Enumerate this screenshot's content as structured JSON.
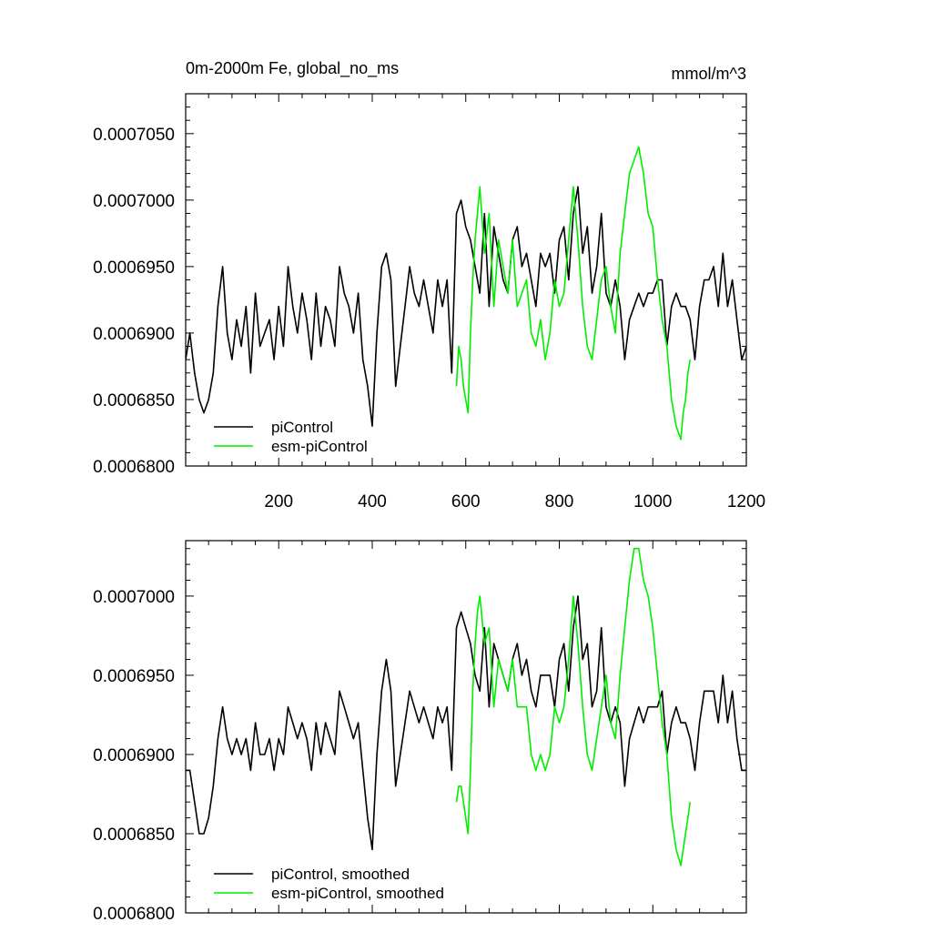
{
  "colors": {
    "piControl": "#000000",
    "esm_piControl": "#00ee00"
  },
  "chart_data": [
    {
      "type": "line",
      "title": "0m-2000m Fe, global_no_ms",
      "units": "mmol/m^3",
      "xlim": [
        1,
        1200
      ],
      "ylim": [
        0.00068,
        0.000708
      ],
      "xticks": [
        200,
        400,
        600,
        800,
        1000,
        1200
      ],
      "xtick_labels": [
        "200",
        "400",
        "600",
        "800",
        "1000",
        "1200"
      ],
      "yticks": [
        0.00068,
        0.000685,
        0.00069,
        0.000695,
        0.0007,
        0.000705
      ],
      "ytick_labels": [
        "0.0006800",
        "0.0006850",
        "0.0006900",
        "0.0006950",
        "0.0007000",
        "0.0007050"
      ],
      "grid": false,
      "legend_position": "bottom-left",
      "series": [
        {
          "name": "piControl",
          "color_key": "piControl",
          "x": [
            1,
            10,
            20,
            30,
            40,
            50,
            60,
            70,
            80,
            90,
            100,
            110,
            120,
            130,
            140,
            150,
            160,
            170,
            180,
            190,
            200,
            210,
            220,
            230,
            240,
            250,
            260,
            270,
            280,
            290,
            300,
            310,
            320,
            330,
            340,
            350,
            360,
            370,
            380,
            390,
            400,
            410,
            420,
            430,
            440,
            450,
            460,
            470,
            480,
            490,
            500,
            510,
            520,
            530,
            540,
            550,
            560,
            570,
            580,
            590,
            600,
            610,
            620,
            630,
            640,
            650,
            660,
            670,
            680,
            690,
            700,
            710,
            720,
            730,
            740,
            750,
            760,
            770,
            780,
            790,
            800,
            810,
            820,
            830,
            840,
            850,
            860,
            870,
            880,
            890,
            900,
            910,
            920,
            930,
            940,
            950,
            960,
            970,
            980,
            990,
            1000,
            1010,
            1020,
            1030,
            1040,
            1050,
            1060,
            1070,
            1080,
            1090,
            1100,
            1110,
            1120,
            1130,
            1140,
            1150,
            1160,
            1170,
            1180,
            1190,
            1200
          ],
          "values": [
            0.000688,
            0.00069,
            0.000687,
            0.000685,
            0.000684,
            0.000685,
            0.000687,
            0.000692,
            0.000695,
            0.00069,
            0.000688,
            0.000691,
            0.000689,
            0.000692,
            0.000687,
            0.000693,
            0.000689,
            0.00069,
            0.000691,
            0.000688,
            0.000692,
            0.000689,
            0.000695,
            0.000692,
            0.00069,
            0.000693,
            0.000691,
            0.000688,
            0.000693,
            0.000689,
            0.000692,
            0.000691,
            0.000689,
            0.000695,
            0.000693,
            0.000692,
            0.00069,
            0.000693,
            0.000688,
            0.000686,
            0.000683,
            0.00069,
            0.000695,
            0.000696,
            0.000694,
            0.000686,
            0.000689,
            0.000692,
            0.000695,
            0.000693,
            0.000692,
            0.000694,
            0.000692,
            0.00069,
            0.000694,
            0.000692,
            0.000694,
            0.000687,
            0.000699,
            0.0007,
            0.000698,
            0.000697,
            0.000695,
            0.000693,
            0.000699,
            0.000692,
            0.000698,
            0.000696,
            0.000694,
            0.000693,
            0.000697,
            0.000698,
            0.000695,
            0.000696,
            0.000694,
            0.000692,
            0.000696,
            0.000695,
            0.000696,
            0.000693,
            0.000697,
            0.000698,
            0.000694,
            0.000699,
            0.000701,
            0.000696,
            0.000698,
            0.000693,
            0.000695,
            0.000699,
            0.000693,
            0.000692,
            0.000694,
            0.000692,
            0.000688,
            0.000691,
            0.000692,
            0.000693,
            0.000692,
            0.000693,
            0.000693,
            0.000694,
            0.000694,
            0.000689,
            0.000692,
            0.000693,
            0.000692,
            0.000692,
            0.000691,
            0.000688,
            0.000692,
            0.000694,
            0.000694,
            0.000695,
            0.000692,
            0.000696,
            0.000692,
            0.000694,
            0.000691,
            0.000688,
            0.000689
          ]
        },
        {
          "name": "esm-piControl",
          "color_key": "esm_piControl",
          "x": [
            580,
            585,
            590,
            595,
            600,
            605,
            610,
            615,
            620,
            625,
            630,
            640,
            650,
            660,
            670,
            680,
            690,
            700,
            710,
            720,
            730,
            740,
            750,
            760,
            770,
            780,
            790,
            800,
            810,
            820,
            830,
            840,
            850,
            860,
            870,
            880,
            890,
            900,
            910,
            920,
            930,
            940,
            950,
            960,
            970,
            980,
            990,
            1000,
            1010,
            1020,
            1030,
            1040,
            1050,
            1060,
            1065,
            1070,
            1075,
            1080
          ],
          "values": [
            0.000686,
            0.000689,
            0.000688,
            0.000686,
            0.000685,
            0.000684,
            0.00069,
            0.000694,
            0.000697,
            0.000699,
            0.000701,
            0.000696,
            0.000699,
            0.000692,
            0.000697,
            0.000695,
            0.000693,
            0.000697,
            0.000692,
            0.000693,
            0.000694,
            0.00069,
            0.000689,
            0.000691,
            0.000688,
            0.00069,
            0.000694,
            0.000692,
            0.000693,
            0.000697,
            0.000701,
            0.000697,
            0.000692,
            0.000689,
            0.000688,
            0.000691,
            0.000694,
            0.000695,
            0.000692,
            0.00069,
            0.000696,
            0.000699,
            0.000702,
            0.000703,
            0.000704,
            0.000702,
            0.000699,
            0.000698,
            0.000694,
            0.000691,
            0.000689,
            0.000685,
            0.000683,
            0.000682,
            0.000684,
            0.000685,
            0.000687,
            0.000688
          ]
        }
      ]
    },
    {
      "type": "line",
      "title": "",
      "xlim": [
        1,
        1200
      ],
      "ylim": [
        0.00068,
        0.0007035
      ],
      "yticks": [
        0.00068,
        0.000685,
        0.00069,
        0.000695,
        0.0007
      ],
      "ytick_labels": [
        "0.0006800",
        "0.0006850",
        "0.0006900",
        "0.0006950",
        "0.0007000"
      ],
      "grid": false,
      "legend_position": "bottom-left",
      "series": [
        {
          "name": "piControl, smoothed",
          "color_key": "piControl",
          "x": [
            1,
            10,
            20,
            30,
            40,
            50,
            60,
            70,
            80,
            90,
            100,
            110,
            120,
            130,
            140,
            150,
            160,
            170,
            180,
            190,
            200,
            210,
            220,
            230,
            240,
            250,
            260,
            270,
            280,
            290,
            300,
            310,
            320,
            330,
            340,
            350,
            360,
            370,
            380,
            390,
            400,
            410,
            420,
            430,
            440,
            450,
            460,
            470,
            480,
            490,
            500,
            510,
            520,
            530,
            540,
            550,
            560,
            570,
            580,
            590,
            600,
            610,
            620,
            630,
            640,
            650,
            660,
            670,
            680,
            690,
            700,
            710,
            720,
            730,
            740,
            750,
            760,
            770,
            780,
            790,
            800,
            810,
            820,
            830,
            840,
            850,
            860,
            870,
            880,
            890,
            900,
            910,
            920,
            930,
            940,
            950,
            960,
            970,
            980,
            990,
            1000,
            1010,
            1020,
            1030,
            1040,
            1050,
            1060,
            1070,
            1080,
            1090,
            1100,
            1110,
            1120,
            1130,
            1140,
            1150,
            1160,
            1170,
            1180,
            1190,
            1200
          ],
          "values": [
            0.000689,
            0.000689,
            0.000687,
            0.000685,
            0.000685,
            0.000686,
            0.000688,
            0.000691,
            0.000693,
            0.000691,
            0.00069,
            0.000691,
            0.00069,
            0.000691,
            0.000689,
            0.000692,
            0.00069,
            0.00069,
            0.000691,
            0.000689,
            0.000691,
            0.00069,
            0.000693,
            0.000692,
            0.000691,
            0.000692,
            0.000691,
            0.000689,
            0.000692,
            0.00069,
            0.000692,
            0.000691,
            0.00069,
            0.000694,
            0.000693,
            0.000692,
            0.000691,
            0.000692,
            0.000689,
            0.000686,
            0.000684,
            0.00069,
            0.000694,
            0.000696,
            0.000694,
            0.000688,
            0.00069,
            0.000692,
            0.000694,
            0.000693,
            0.000692,
            0.000693,
            0.000692,
            0.000691,
            0.000693,
            0.000692,
            0.000693,
            0.000689,
            0.000698,
            0.000699,
            0.000698,
            0.000697,
            0.000695,
            0.000694,
            0.000698,
            0.000693,
            0.000697,
            0.000696,
            0.000695,
            0.000694,
            0.000696,
            0.000697,
            0.000695,
            0.000696,
            0.000694,
            0.000693,
            0.000695,
            0.000695,
            0.000695,
            0.000693,
            0.000696,
            0.000697,
            0.000694,
            0.000698,
            0.0007,
            0.000696,
            0.000697,
            0.000693,
            0.000694,
            0.000698,
            0.000693,
            0.000692,
            0.000693,
            0.000692,
            0.000688,
            0.000691,
            0.000692,
            0.000693,
            0.000692,
            0.000693,
            0.000693,
            0.000693,
            0.000694,
            0.00069,
            0.000692,
            0.000693,
            0.000692,
            0.000692,
            0.000691,
            0.000689,
            0.000692,
            0.000694,
            0.000694,
            0.000694,
            0.000692,
            0.000695,
            0.000692,
            0.000694,
            0.000691,
            0.000689,
            0.000689
          ]
        },
        {
          "name": "esm-piControl, smoothed",
          "color_key": "esm_piControl",
          "x": [
            580,
            585,
            590,
            595,
            600,
            605,
            610,
            615,
            620,
            625,
            630,
            640,
            650,
            660,
            670,
            680,
            690,
            700,
            710,
            720,
            730,
            740,
            750,
            760,
            770,
            780,
            790,
            800,
            810,
            820,
            830,
            840,
            850,
            860,
            870,
            880,
            890,
            900,
            910,
            920,
            930,
            940,
            950,
            960,
            970,
            980,
            990,
            1000,
            1010,
            1020,
            1030,
            1040,
            1050,
            1060,
            1065,
            1070,
            1075,
            1080
          ],
          "values": [
            0.000687,
            0.000688,
            0.000688,
            0.000687,
            0.000686,
            0.000685,
            0.000689,
            0.000694,
            0.000697,
            0.000699,
            0.0007,
            0.000697,
            0.000698,
            0.000693,
            0.000696,
            0.000695,
            0.000694,
            0.000696,
            0.000693,
            0.000693,
            0.000693,
            0.00069,
            0.000689,
            0.00069,
            0.000689,
            0.00069,
            0.000693,
            0.000692,
            0.000693,
            0.000696,
            0.0007,
            0.000697,
            0.000693,
            0.00069,
            0.000689,
            0.000691,
            0.000693,
            0.000695,
            0.000692,
            0.000691,
            0.000695,
            0.000698,
            0.000701,
            0.000703,
            0.000703,
            0.000701,
            0.0007,
            0.000698,
            0.000695,
            0.000692,
            0.00069,
            0.000686,
            0.000684,
            0.000683,
            0.000684,
            0.000685,
            0.000686,
            0.000687
          ]
        }
      ]
    }
  ],
  "legends": [
    {
      "items": [
        "piControl",
        "esm-piControl"
      ]
    },
    {
      "items": [
        "piControl, smoothed",
        "esm-piControl, smoothed"
      ]
    }
  ]
}
